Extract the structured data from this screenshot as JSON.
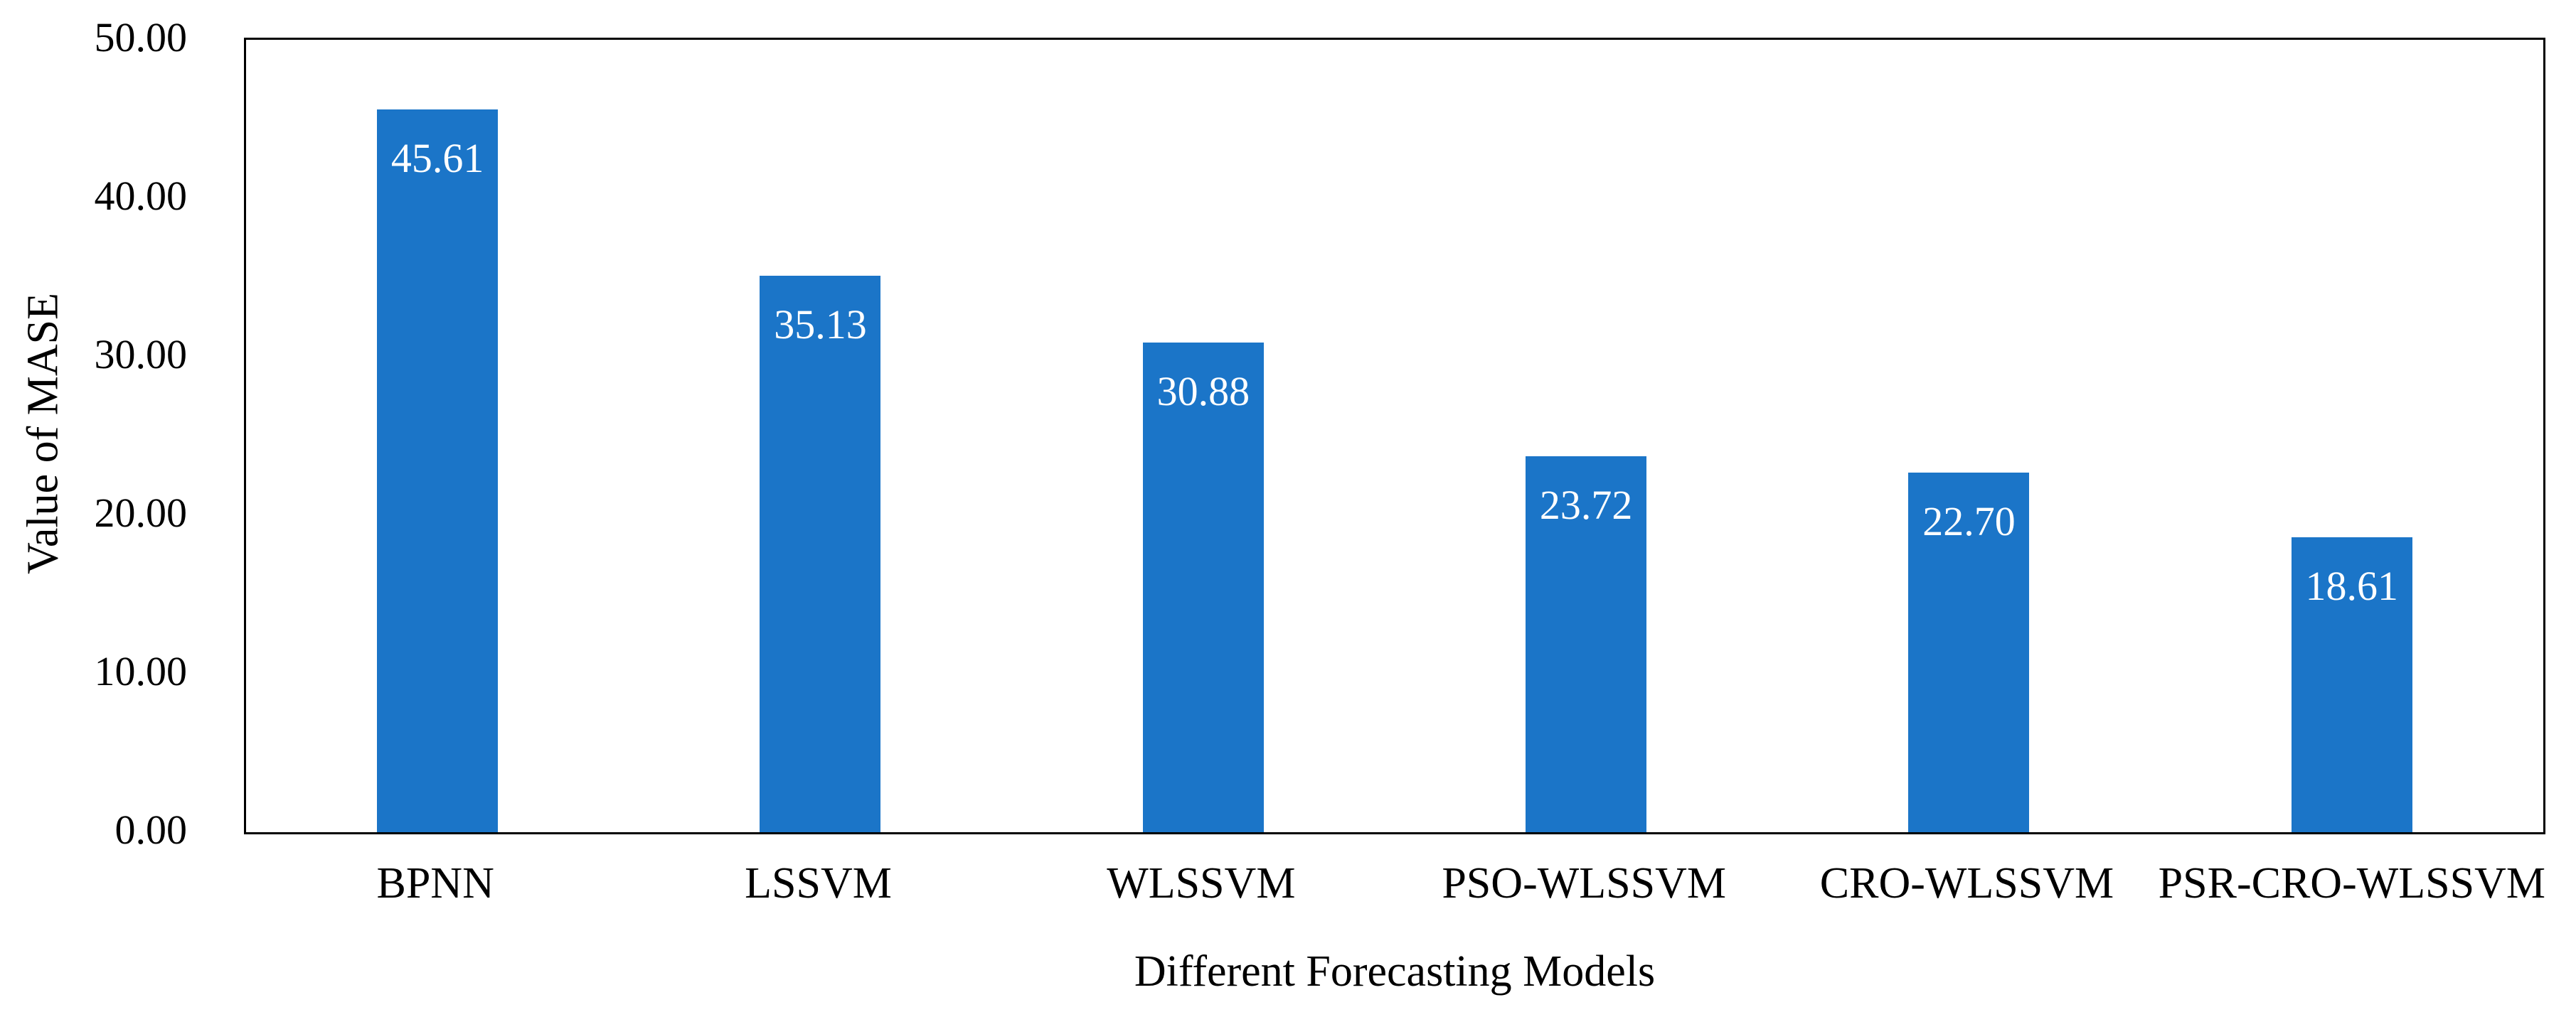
{
  "chart_data": {
    "type": "bar",
    "categories": [
      "BPNN",
      "LSSVM",
      "WLSSVM",
      "PSO-WLSSVM",
      "CRO-WLSSVM",
      "PSR-CRO-WLSSVM"
    ],
    "values": [
      45.61,
      35.13,
      30.88,
      23.72,
      22.7,
      18.61
    ],
    "value_labels": [
      "45.61",
      "35.13",
      "30.88",
      "23.72",
      "22.70",
      "18.61"
    ],
    "xlabel": "Different Forecasting Models",
    "ylabel": "Value of MASE",
    "ylim": [
      0,
      50
    ],
    "yticks": [
      0,
      10,
      20,
      30,
      40,
      50
    ],
    "ytick_labels": [
      "0.00",
      "10.00",
      "20.00",
      "30.00",
      "40.00",
      "50.00"
    ],
    "grid": false,
    "legend": null,
    "colors": {
      "bar_fill": "#1B75C8",
      "bar_value_label": "#FFFFFF",
      "frame": "#000000",
      "text": "#000000",
      "background": "#FFFFFF"
    }
  }
}
